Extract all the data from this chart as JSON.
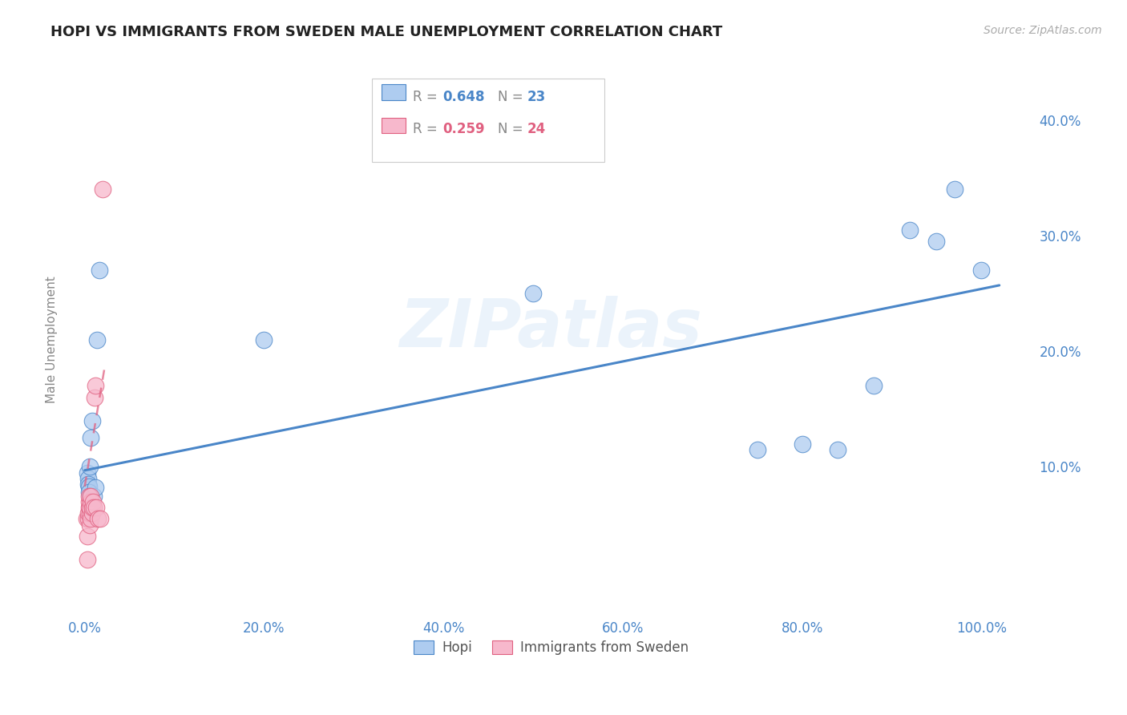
{
  "title": "HOPI VS IMMIGRANTS FROM SWEDEN MALE UNEMPLOYMENT CORRELATION CHART",
  "source": "Source: ZipAtlas.com",
  "ylabel": "Male Unemployment",
  "x_tick_labels": [
    "0.0%",
    "20.0%",
    "40.0%",
    "60.0%",
    "80.0%",
    "100.0%"
  ],
  "x_tick_vals": [
    0,
    0.2,
    0.4,
    0.6,
    0.8,
    1.0
  ],
  "y_tick_labels": [
    "10.0%",
    "20.0%",
    "30.0%",
    "40.0%"
  ],
  "y_tick_vals": [
    0.1,
    0.2,
    0.3,
    0.4
  ],
  "ylim": [
    -0.03,
    0.45
  ],
  "xlim": [
    -0.02,
    1.06
  ],
  "hopi_R": 0.648,
  "hopi_N": 23,
  "sweden_R": 0.259,
  "sweden_N": 24,
  "hopi_color": "#aeccf0",
  "hopi_line_color": "#4a86c8",
  "sweden_color": "#f7b8cc",
  "sweden_line_color": "#e06080",
  "hopi_scatter_x": [
    0.003,
    0.004,
    0.004,
    0.005,
    0.005,
    0.006,
    0.006,
    0.007,
    0.008,
    0.01,
    0.012,
    0.014,
    0.016,
    0.2,
    0.5,
    0.75,
    0.8,
    0.84,
    0.88,
    0.92,
    0.95,
    0.97,
    1.0
  ],
  "hopi_scatter_y": [
    0.095,
    0.09,
    0.085,
    0.083,
    0.078,
    0.1,
    0.075,
    0.125,
    0.14,
    0.075,
    0.082,
    0.21,
    0.27,
    0.21,
    0.25,
    0.115,
    0.12,
    0.115,
    0.17,
    0.305,
    0.295,
    0.34,
    0.27
  ],
  "sweden_scatter_x": [
    0.002,
    0.003,
    0.003,
    0.004,
    0.004,
    0.005,
    0.005,
    0.005,
    0.006,
    0.006,
    0.006,
    0.007,
    0.007,
    0.007,
    0.008,
    0.008,
    0.009,
    0.01,
    0.011,
    0.012,
    0.013,
    0.015,
    0.017,
    0.02
  ],
  "sweden_scatter_y": [
    0.055,
    0.02,
    0.04,
    0.055,
    0.06,
    0.065,
    0.07,
    0.075,
    0.05,
    0.06,
    0.065,
    0.055,
    0.07,
    0.075,
    0.06,
    0.065,
    0.07,
    0.065,
    0.16,
    0.17,
    0.065,
    0.055,
    0.055,
    0.34
  ],
  "hopi_trendline_x": [
    0.0,
    1.02
  ],
  "hopi_trendline_y": [
    0.097,
    0.257
  ],
  "sweden_trendline_x": [
    0.0,
    0.022
  ],
  "sweden_trendline_y": [
    0.083,
    0.185
  ],
  "watermark": "ZIPatlas",
  "background_color": "#ffffff",
  "grid_color": "#cccccc"
}
